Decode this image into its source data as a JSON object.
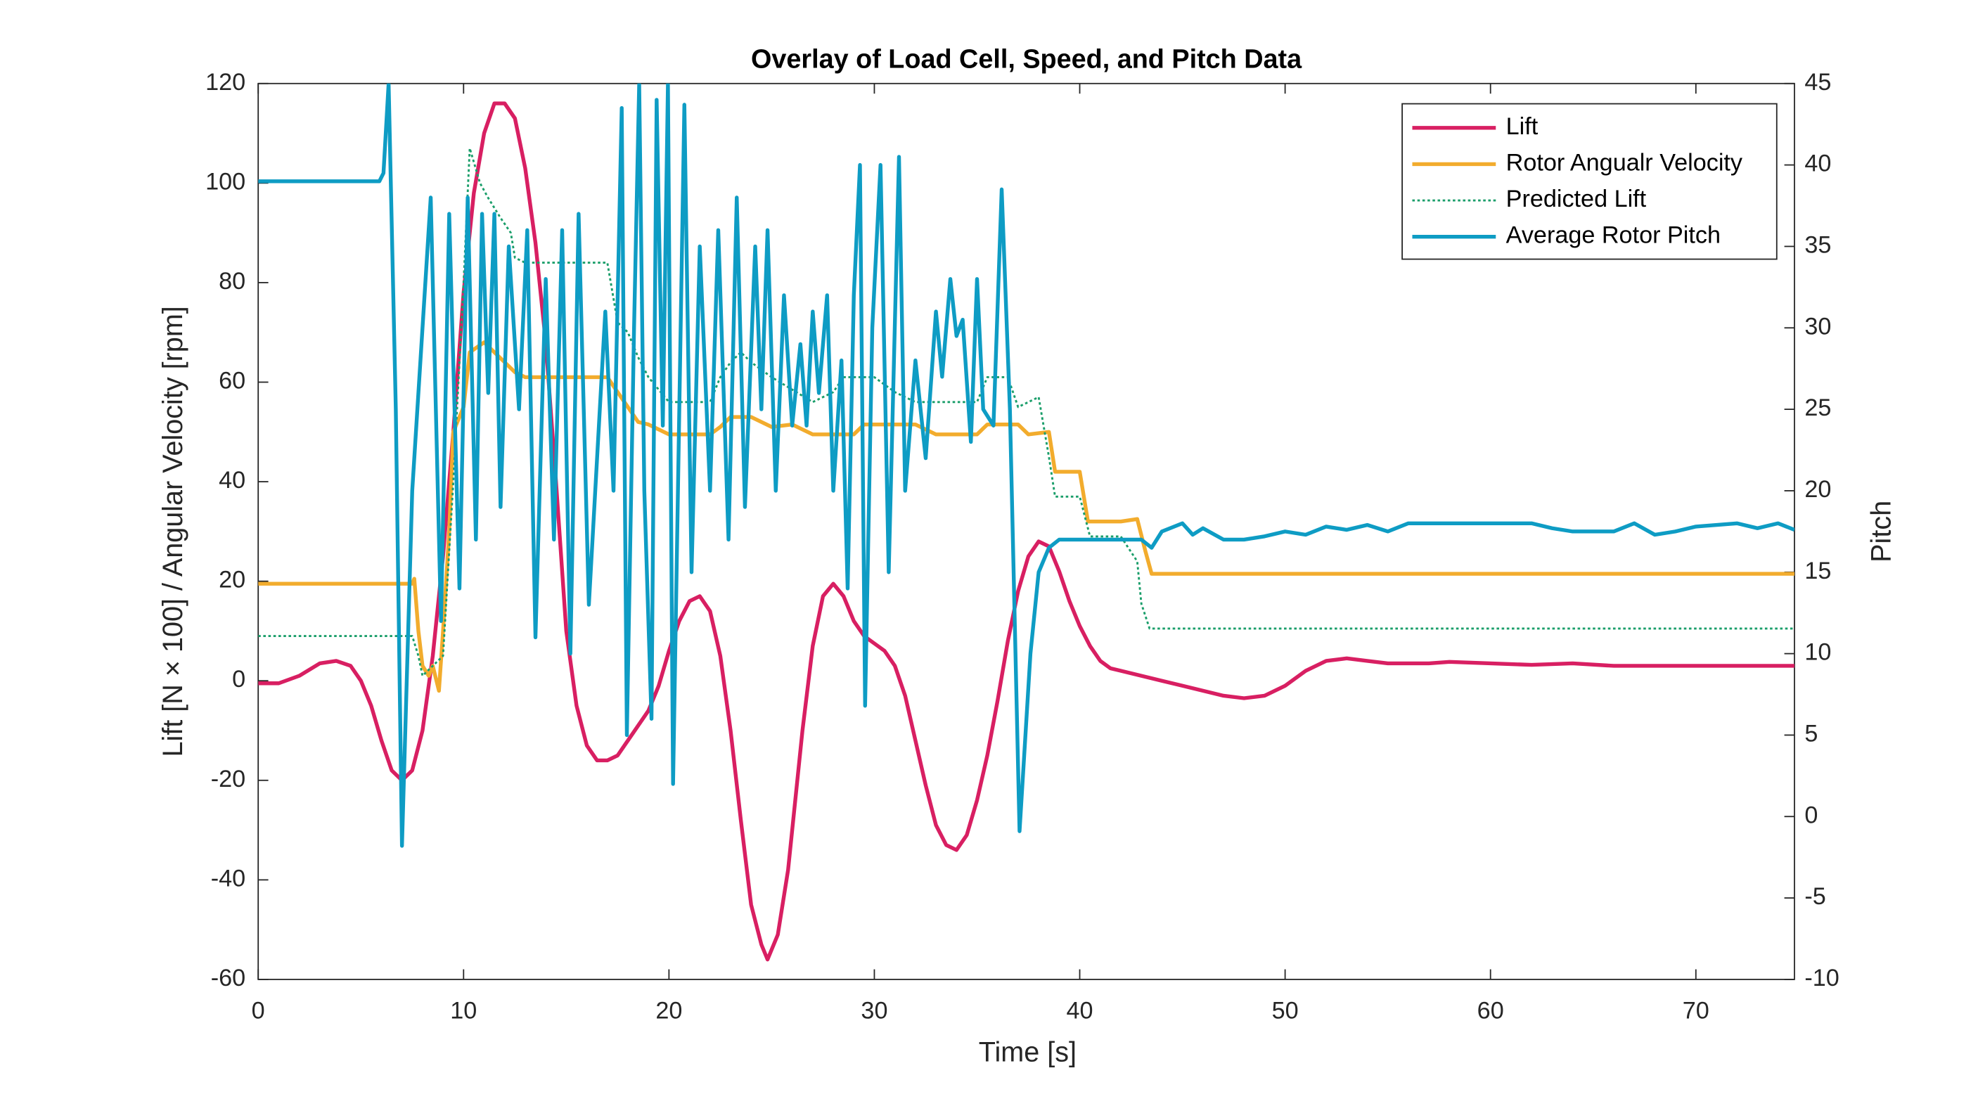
{
  "chart_data": {
    "type": "line",
    "title": "Overlay of Load Cell, Speed, and Pitch Data",
    "x_label": "Time [s]",
    "y_label": "Lift [N × 100] / Angular Velocity [rpm]",
    "y2_label": "Pitch",
    "xlim": [
      0,
      74.8
    ],
    "xticks": [
      0,
      10,
      20,
      30,
      40,
      50,
      60,
      70
    ],
    "ylim": [
      -60,
      120
    ],
    "yticks": [
      -60,
      -40,
      -20,
      0,
      20,
      40,
      60,
      80,
      100,
      120
    ],
    "y2lim": [
      -10,
      45
    ],
    "y2ticks": [
      -10,
      -5,
      0,
      5,
      10,
      15,
      20,
      25,
      30,
      35,
      40,
      45
    ],
    "legend": "top-right",
    "series": [
      {
        "name": "Lift",
        "color": "#d81f62",
        "style": "solid",
        "x": [
          0,
          1,
          2,
          3,
          3.8,
          4.5,
          5,
          5.5,
          6,
          6.5,
          7,
          7.5,
          8,
          8.5,
          9,
          9.5,
          10,
          10.5,
          11,
          11.5,
          12,
          12.5,
          13,
          13.5,
          14,
          14.5,
          15,
          15.5,
          16,
          16.5,
          17,
          17.5,
          18,
          19,
          19.5,
          20,
          20.5,
          21,
          21.5,
          22,
          22.5,
          23,
          23.5,
          24,
          24.5,
          24.8,
          25.3,
          25.8,
          26.5,
          27,
          27.5,
          28,
          28.5,
          29,
          29.5,
          30,
          30.5,
          31,
          31.5,
          32,
          32.5,
          33,
          33.5,
          34,
          34.5,
          35,
          35.5,
          36,
          36.5,
          37,
          37.5,
          38,
          38.5,
          39,
          39.5,
          40,
          40.5,
          41,
          41.5,
          42,
          43,
          44,
          45,
          46,
          47,
          48,
          49,
          50,
          51,
          52,
          53,
          54,
          55,
          57,
          58,
          60,
          62,
          64,
          66,
          70,
          74.8
        ],
        "values": [
          -0.5,
          -0.5,
          1,
          3.5,
          4,
          3,
          0,
          -5,
          -12,
          -18,
          -20,
          -18,
          -10,
          5,
          25,
          50,
          78,
          98,
          110,
          116,
          116,
          113,
          103,
          88,
          68,
          40,
          10,
          -5,
          -13,
          -16,
          -16,
          -15,
          -12,
          -6,
          -1,
          6,
          12,
          16,
          17,
          14,
          5,
          -10,
          -28,
          -45,
          -53,
          -56,
          -51,
          -38,
          -10,
          7,
          17,
          19.5,
          17,
          12,
          9,
          7.5,
          6,
          3,
          -3,
          -12,
          -21,
          -29,
          -33,
          -34,
          -31,
          -24,
          -15,
          -4,
          8,
          18,
          25,
          28,
          27,
          22,
          16,
          11,
          7,
          4,
          2.5,
          2,
          1,
          0,
          -1,
          -2,
          -3,
          -3.5,
          -3,
          -1,
          2,
          4,
          4.5,
          4,
          3.5,
          3.5,
          3.8,
          3.5,
          3.2,
          3.5,
          3,
          3,
          3
        ]
      },
      {
        "name": "Rotor Angualr Velocity",
        "color": "#f2ac2d",
        "style": "solid",
        "x": [
          0,
          7.5,
          7.6,
          7.8,
          8,
          8.3,
          8.5,
          8.8,
          9,
          9.3,
          9.5,
          10,
          10.3,
          11,
          11.5,
          12,
          12.5,
          13,
          17,
          17.5,
          18,
          18.5,
          19,
          20,
          22,
          22.5,
          23,
          24,
          25,
          26,
          27,
          29,
          29.5,
          32,
          33,
          35,
          35.5,
          37,
          37.5,
          38.5,
          38.8,
          40,
          40.4,
          42,
          42.8,
          43.2,
          43.5,
          74.8
        ],
        "values": [
          19.5,
          19.5,
          20.5,
          10,
          3,
          1,
          3,
          -2,
          10,
          30,
          50,
          55,
          66,
          68,
          66,
          64,
          62,
          61,
          61,
          58,
          55,
          52,
          51.5,
          49.5,
          49.5,
          51,
          53,
          53,
          51,
          51.5,
          49.5,
          49.5,
          51.5,
          51.5,
          49.5,
          49.5,
          51.5,
          51.5,
          49.5,
          50,
          42,
          42,
          32,
          32,
          32.5,
          26,
          21.5,
          21.5
        ]
      },
      {
        "name": "Predicted Lift",
        "color": "#1a9e6a",
        "style": "dotted",
        "x": [
          0,
          7.5,
          7.8,
          8,
          8.5,
          9,
          9.5,
          10,
          10.3,
          10.8,
          11.2,
          11.8,
          12.3,
          12.5,
          13,
          17,
          17.5,
          18,
          18.5,
          19,
          20,
          22,
          22.5,
          23,
          23.5,
          24,
          25,
          27,
          28,
          28.5,
          30,
          31,
          32,
          35,
          35.5,
          36.5,
          37,
          38,
          38.5,
          38.8,
          40,
          40.5,
          42,
          42.8,
          43,
          43.4,
          74.8
        ],
        "values": [
          9,
          9,
          5,
          1,
          3,
          5,
          40,
          80,
          107,
          100,
          97,
          93,
          90,
          85,
          84,
          84,
          72,
          70,
          65,
          61,
          56,
          56,
          61,
          64,
          66,
          64,
          61,
          56,
          58,
          61,
          61,
          58,
          56,
          56,
          61,
          61,
          55,
          57,
          45,
          37,
          37,
          29,
          29,
          24,
          15.5,
          10.5,
          10.5
        ]
      },
      {
        "name": "Average Rotor Pitch",
        "color": "#0e9cc4",
        "style": "solid",
        "axis": "y2",
        "x": [
          0,
          5.9,
          6.1,
          6.35,
          6.7,
          7.0,
          7.5,
          8.0,
          8.4,
          8.9,
          9.3,
          9.8,
          10.2,
          10.6,
          10.9,
          11.2,
          11.5,
          11.8,
          12.2,
          12.7,
          13.1,
          13.5,
          14.0,
          14.4,
          14.8,
          15.2,
          15.6,
          16.1,
          16.5,
          16.9,
          17.3,
          17.7,
          17.95,
          18.3,
          18.55,
          18.8,
          19.15,
          19.4,
          19.7,
          19.95,
          20.2,
          20.75,
          21.1,
          21.5,
          22.0,
          22.4,
          22.9,
          23.3,
          23.7,
          24.2,
          24.5,
          24.8,
          25.2,
          25.6,
          26.0,
          26.4,
          26.7,
          27.0,
          27.3,
          27.7,
          28.0,
          28.4,
          28.7,
          29.0,
          29.3,
          29.55,
          29.9,
          30.3,
          30.7,
          31.2,
          31.5,
          32.0,
          32.5,
          33.0,
          33.3,
          33.7,
          34.0,
          34.3,
          34.7,
          35.0,
          35.3,
          35.8,
          36.2,
          36.6,
          37.07,
          37.6,
          38.0,
          38.5,
          39,
          40,
          42,
          43,
          43.5,
          44,
          45,
          45.5,
          46,
          47,
          48,
          49,
          50,
          51,
          52,
          53,
          54,
          55,
          56,
          58,
          60,
          62,
          63,
          64,
          66,
          67,
          68,
          69,
          70,
          72,
          73,
          74,
          74.8
        ],
        "values": [
          39,
          39,
          39.5,
          45,
          25,
          -1.8,
          20,
          30,
          38,
          12,
          37,
          14,
          38,
          17,
          37,
          26,
          37,
          19,
          35,
          25,
          36,
          11,
          33,
          17,
          36,
          10,
          37,
          13,
          22,
          31,
          20,
          43.5,
          5,
          30,
          45,
          20,
          6,
          44,
          24,
          45,
          2,
          43.7,
          15,
          35,
          20,
          36,
          17,
          38,
          19,
          35,
          25,
          36,
          20,
          32,
          24,
          29,
          24,
          31,
          26,
          32,
          20,
          28,
          14,
          32,
          40,
          6.8,
          30,
          40,
          15,
          40.5,
          20,
          28,
          22,
          31,
          27,
          33,
          29.5,
          30.5,
          23,
          33,
          25,
          24,
          38.5,
          25,
          -0.9,
          10,
          15,
          16.5,
          17,
          17,
          17,
          17,
          16.5,
          17.5,
          18,
          17.3,
          17.7,
          17,
          17,
          17.2,
          17.5,
          17.3,
          17.8,
          17.6,
          17.9,
          17.5,
          18,
          18,
          18,
          18,
          17.7,
          17.5,
          17.5,
          18,
          17.3,
          17.5,
          17.8,
          18,
          17.7,
          18,
          17.6
        ]
      }
    ]
  }
}
